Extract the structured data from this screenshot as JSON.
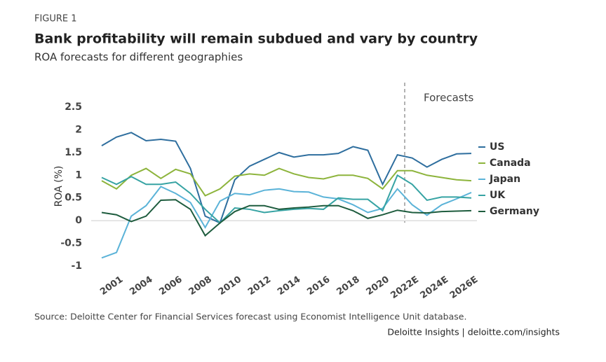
{
  "figure_label": "FIGURE 1",
  "chart_data": {
    "type": "line",
    "title": "Bank profitability will remain subdued and vary by country",
    "subtitle": "ROA forecasts for different geographies",
    "ylabel": "ROA (%)",
    "annotation": "Forecasts",
    "categories": [
      null,
      "2001",
      null,
      "2004",
      null,
      "2006",
      null,
      "2008",
      null,
      "2010",
      null,
      "2012",
      null,
      "2014",
      null,
      "2016",
      null,
      "2018",
      null,
      "2020",
      null,
      "2022E",
      null,
      "2024E",
      null,
      "2026E"
    ],
    "series": [
      {
        "name": "US",
        "color": "#2e6e9e",
        "values": [
          1.65,
          1.84,
          1.94,
          1.76,
          1.79,
          1.75,
          1.15,
          0.1,
          -0.05,
          0.9,
          1.2,
          1.35,
          1.5,
          1.4,
          1.45,
          1.45,
          1.48,
          1.63,
          1.55,
          0.8,
          1.45,
          1.38,
          1.18,
          1.35,
          1.47,
          1.48
        ]
      },
      {
        "name": "Canada",
        "color": "#8db43c",
        "values": [
          0.88,
          0.7,
          1.0,
          1.15,
          0.93,
          1.13,
          1.03,
          0.55,
          0.7,
          0.98,
          1.03,
          1.0,
          1.15,
          1.03,
          0.95,
          0.92,
          1.0,
          1.0,
          0.93,
          0.7,
          1.1,
          1.1,
          1.0,
          0.95,
          0.9,
          0.88
        ]
      },
      {
        "name": "Japan",
        "color": "#5bb3d8",
        "values": [
          -0.82,
          -0.7,
          0.1,
          0.33,
          0.75,
          0.6,
          0.4,
          -0.15,
          0.43,
          0.6,
          0.57,
          0.67,
          0.7,
          0.64,
          0.63,
          0.52,
          0.48,
          0.35,
          0.18,
          0.27,
          0.7,
          0.35,
          0.12,
          0.35,
          0.48,
          0.62
        ]
      },
      {
        "name": "UK",
        "color": "#36a3a3",
        "values": [
          0.95,
          0.8,
          0.97,
          0.8,
          0.8,
          0.85,
          0.6,
          0.25,
          -0.05,
          0.28,
          0.25,
          0.18,
          0.22,
          0.25,
          0.27,
          0.25,
          0.5,
          0.47,
          0.47,
          0.22,
          1.0,
          0.8,
          0.45,
          0.52,
          0.52,
          0.5
        ]
      },
      {
        "name": "Germany",
        "color": "#1e5c3e",
        "values": [
          0.18,
          0.13,
          -0.02,
          0.1,
          0.45,
          0.46,
          0.25,
          -0.33,
          -0.05,
          0.2,
          0.33,
          0.33,
          0.25,
          0.28,
          0.3,
          0.33,
          0.33,
          0.22,
          0.05,
          0.13,
          0.23,
          0.18,
          0.17,
          0.2,
          0.21,
          0.22
        ]
      }
    ],
    "ylim": [
      -1,
      2.5
    ],
    "yticks": [
      -1,
      -0.5,
      0,
      0.5,
      1,
      1.5,
      2,
      2.5
    ]
  },
  "source": "Source: Deloitte Center for Financial Services forecast using Economist Intelligence Unit database.",
  "credit": "Deloitte Insights | deloitte.com/insights"
}
